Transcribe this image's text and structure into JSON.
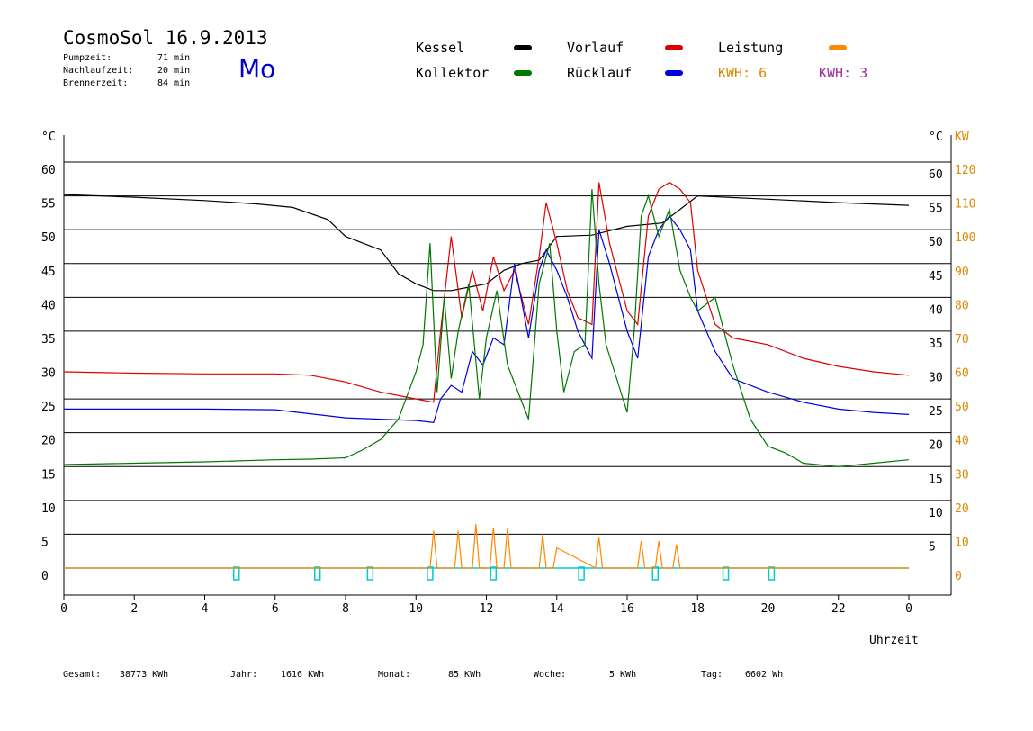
{
  "header": {
    "title": "CosmoSol 16.9.2013",
    "day": "Mo",
    "stats": [
      {
        "label": "Pumpzeit:",
        "value": "71 min"
      },
      {
        "label": "Nachlaufzeit:",
        "value": "20 min"
      },
      {
        "label": "Brennerzeit:",
        "value": "84 min"
      }
    ]
  },
  "legend": {
    "items": [
      {
        "label": "Kessel",
        "color": "#000000"
      },
      {
        "label": "Vorlauf",
        "color": "#dd0000"
      },
      {
        "label": "Leistung",
        "color": "#ff8800"
      },
      {
        "label": "Kollektor",
        "color": "#007700"
      },
      {
        "label": "Rücklauf",
        "color": "#0000dd"
      }
    ],
    "kwh_orange": "KWH: 6",
    "kwh_purple": "KWH: 3",
    "kwh_orange_color": "#dd8800",
    "kwh_purple_color": "#993399"
  },
  "footer": [
    {
      "label": "Gesamt:",
      "value": "38773 KWh"
    },
    {
      "label": "Jahr:",
      "value": "1616 KWh"
    },
    {
      "label": "Monat:",
      "value": "85 KWh"
    },
    {
      "label": "Woche:",
      "value": "5 KWh"
    },
    {
      "label": "Tag:",
      "value": "6602 Wh"
    }
  ],
  "chart_data": {
    "type": "line",
    "xlabel": "Uhrzeit",
    "ylabel_left": "°C",
    "ylabel_right_temp": "°C",
    "ylabel_right_power": "KW",
    "xlim": [
      0,
      24
    ],
    "ylim": [
      0,
      60
    ],
    "y_ticks_left": [
      0,
      5,
      10,
      15,
      20,
      25,
      30,
      35,
      40,
      45,
      50,
      55,
      60
    ],
    "y_ticks_right_temp": [
      5,
      10,
      15,
      20,
      25,
      30,
      35,
      40,
      45,
      50,
      55,
      60
    ],
    "y_ticks_right_power": [
      0,
      10,
      20,
      30,
      40,
      50,
      60,
      70,
      80,
      90,
      100,
      110,
      120
    ],
    "x_tick_labels": [
      "0",
      "2",
      "4",
      "6",
      "8",
      "10",
      "12",
      "14",
      "16",
      "18",
      "20",
      "22",
      "0"
    ],
    "grid": true,
    "series": [
      {
        "name": "Kessel",
        "color": "#000000",
        "x": [
          0,
          2,
          4,
          5.5,
          6.5,
          7.5,
          8,
          9,
          9.5,
          10,
          10.5,
          11,
          11.5,
          12,
          12.5,
          13,
          13.5,
          14,
          15,
          16,
          17,
          17.5,
          18,
          20,
          22,
          24
        ],
        "y": [
          55.2,
          54.8,
          54.3,
          53.8,
          53.3,
          51.5,
          49,
          47,
          43.5,
          42,
          41,
          41,
          41.5,
          42,
          44,
          45,
          45.5,
          49,
          49.2,
          50.5,
          51,
          53,
          55,
          54.5,
          54,
          53.6
        ]
      },
      {
        "name": "Vorlauf",
        "color": "#dd0000",
        "x": [
          0,
          2,
          4,
          6,
          7,
          8,
          9,
          10,
          10.5,
          10.7,
          11,
          11.3,
          11.6,
          11.9,
          12.2,
          12.5,
          12.8,
          13.2,
          13.5,
          13.7,
          14,
          14.3,
          14.6,
          15,
          15.2,
          15.5,
          16,
          16.3,
          16.6,
          16.9,
          17.2,
          17.5,
          17.8,
          18,
          18.5,
          19,
          20,
          21,
          22,
          23,
          24
        ],
        "y": [
          29,
          28.8,
          28.7,
          28.7,
          28.5,
          27.5,
          26,
          25,
          24.5,
          35,
          49,
          37,
          44,
          38,
          46,
          41,
          44,
          36,
          46,
          54,
          48,
          41,
          37,
          36,
          57,
          48,
          38,
          36,
          52,
          56,
          57,
          56,
          54,
          44,
          36,
          34,
          33,
          31,
          29.8,
          29,
          28.5
        ]
      },
      {
        "name": "Rücklauf",
        "color": "#0000dd",
        "x": [
          0,
          2,
          4,
          6,
          7,
          8,
          9,
          10,
          10.5,
          10.7,
          11,
          11.3,
          11.6,
          11.9,
          12.2,
          12.5,
          12.8,
          13.2,
          13.5,
          13.7,
          14,
          14.3,
          14.6,
          15,
          15.2,
          15.5,
          16,
          16.3,
          16.6,
          16.9,
          17.2,
          17.5,
          17.8,
          18,
          18.5,
          19,
          20,
          21,
          22,
          23,
          24
        ],
        "y": [
          23.5,
          23.5,
          23.5,
          23.4,
          22.8,
          22.2,
          22,
          21.8,
          21.5,
          25,
          27,
          26,
          32,
          30,
          34,
          33,
          45,
          34,
          44,
          47,
          44,
          40,
          35,
          31,
          50,
          45,
          35,
          31,
          46,
          50,
          52,
          50,
          47,
          38,
          32,
          28,
          26,
          24.5,
          23.5,
          23,
          22.7
        ]
      },
      {
        "name": "Kollektor",
        "color": "#007700",
        "x": [
          0,
          2,
          4,
          6,
          7,
          8,
          8.5,
          9,
          9.5,
          10,
          10.2,
          10.4,
          10.6,
          10.8,
          11,
          11.2,
          11.5,
          11.8,
          12,
          12.3,
          12.6,
          12.9,
          13.2,
          13.5,
          13.8,
          14,
          14.2,
          14.5,
          14.8,
          15,
          15.2,
          15.4,
          15.7,
          16,
          16.2,
          16.4,
          16.6,
          16.9,
          17.2,
          17.5,
          17.8,
          18,
          18.5,
          19,
          19.5,
          20,
          20.5,
          21,
          22,
          23,
          24
        ],
        "y": [
          15.3,
          15.5,
          15.7,
          16,
          16.1,
          16.3,
          17.5,
          19,
          22,
          29,
          33,
          48,
          26,
          40,
          28,
          35,
          42,
          25,
          34,
          41,
          30,
          26,
          22,
          42,
          48,
          35,
          26,
          32,
          33,
          56,
          42,
          33,
          28,
          23,
          35,
          52,
          55,
          49,
          53,
          44,
          40,
          38,
          40,
          30,
          22,
          18,
          17,
          15.5,
          15,
          15.5,
          16
        ]
      },
      {
        "name": "Leistung",
        "color": "#ff8800",
        "x": [
          0,
          10.4,
          10.5,
          10.6,
          11.1,
          11.2,
          11.3,
          11.6,
          11.7,
          11.8,
          12.1,
          12.2,
          12.3,
          12.5,
          12.6,
          12.7,
          13.5,
          13.6,
          13.7,
          13.9,
          14,
          15.1,
          15.2,
          15.3,
          16.3,
          16.4,
          16.5,
          16.8,
          16.9,
          17,
          17.3,
          17.4,
          17.5,
          17.7,
          24
        ],
        "y": [
          0,
          0,
          5.5,
          0,
          0,
          5.5,
          0,
          0,
          6.5,
          0,
          0,
          6,
          0,
          0,
          6,
          0,
          0,
          5,
          0,
          0,
          3,
          0,
          4.5,
          0,
          0,
          4,
          0,
          0,
          4,
          0,
          0,
          3.5,
          0,
          0,
          0
        ]
      }
    ],
    "markers": {
      "color": "#00cccc",
      "x": [
        4.9,
        7.2,
        8.7,
        10.4,
        12.2,
        14.7,
        16.8,
        18.8,
        20.1
      ]
    }
  }
}
